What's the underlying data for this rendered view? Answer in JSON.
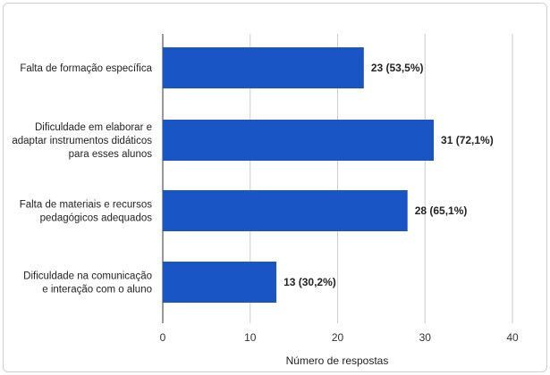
{
  "chart_data": {
    "type": "bar",
    "orientation": "horizontal",
    "categories": [
      [
        "Falta de formação específica"
      ],
      [
        "Dificuldade em elaborar e",
        "adaptar instrumentos didáticos",
        "para esses alunos"
      ],
      [
        "Falta de materiais e recursos",
        "pedagógicos adequados"
      ],
      [
        "Dificuldade na comunicação",
        "e interação com o aluno"
      ]
    ],
    "values": [
      23,
      31,
      28,
      13
    ],
    "data_labels": [
      "23 (53,5%)",
      "31 (72,1%)",
      "28 (65,1%)",
      "13 (30,2%)"
    ],
    "xlabel": "Número de respostas",
    "xlim": [
      0,
      40
    ],
    "xticks": [
      0,
      10,
      20,
      30,
      40
    ],
    "grid": "vertical",
    "bar_color": "#1a55c6",
    "grid_color": "#cccccc"
  }
}
